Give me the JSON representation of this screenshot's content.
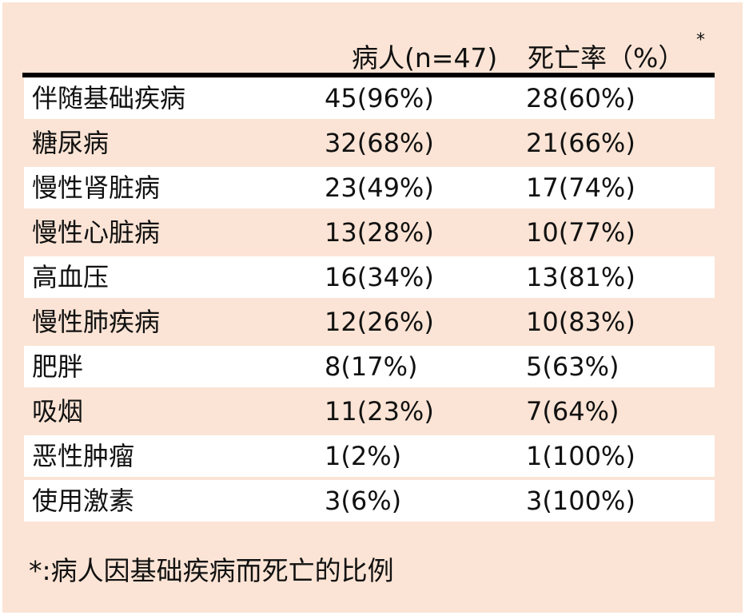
{
  "header": {
    "col_patients": "病人(n=47)",
    "col_mortality": "死亡率（%）",
    "mortality_marker": "*"
  },
  "rows": [
    {
      "condition": "伴随基础疾病",
      "patients": "45(96%)",
      "mortality": "28(60%)"
    },
    {
      "condition": "糖尿病",
      "patients": "32(68%)",
      "mortality": "21(66%)"
    },
    {
      "condition": "慢性肾脏病",
      "patients": "23(49%)",
      "mortality": "17(74%)"
    },
    {
      "condition": "慢性心脏病",
      "patients": "13(28%)",
      "mortality": "10(77%)"
    },
    {
      "condition": "高血压",
      "patients": "16(34%)",
      "mortality": "13(81%)"
    },
    {
      "condition": "慢性肺疾病",
      "patients": "12(26%)",
      "mortality": "10(83%)"
    },
    {
      "condition": "肥胖",
      "patients": "8(17%)",
      "mortality": "5(63%)"
    },
    {
      "condition": "吸烟",
      "patients": "11(23%)",
      "mortality": "7(64%)"
    },
    {
      "condition": "恶性肿瘤",
      "patients": "1(2%)",
      "mortality": "1(100%)"
    },
    {
      "condition": "使用激素",
      "patients": "3(6%)",
      "mortality": "3(100%)"
    }
  ],
  "footnote": "*:病人因基础疾病而死亡的比例",
  "colors": {
    "background": "#fbe4d5",
    "row_alt": "#ffffff",
    "rule": "#000000"
  }
}
